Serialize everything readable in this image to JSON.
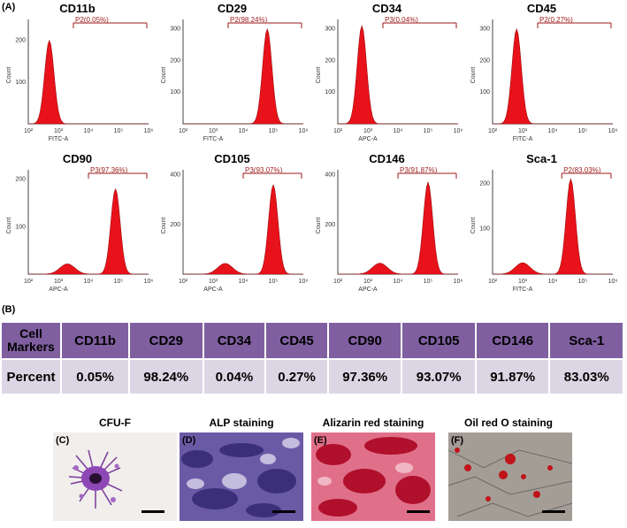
{
  "panel_a_label": "(A)",
  "panel_b_label": "(B)",
  "histograms": [
    {
      "title": "CD11b",
      "gate": "P2(0.05%)",
      "xaxis": "FITC-A",
      "yticks": [
        "100",
        "200"
      ],
      "peak_decade": 2.7,
      "peak_count": 200,
      "ymax": 250
    },
    {
      "title": "CD29",
      "gate": "P2(98.24%)",
      "xaxis": "FITC-A",
      "yticks": [
        "100",
        "200",
        "300"
      ],
      "peak_decade": 4.8,
      "peak_count": 300,
      "ymax": 330
    },
    {
      "title": "CD34",
      "gate": "P3(0.04%)",
      "xaxis": "APC-A",
      "yticks": [
        "100",
        "200",
        "300"
      ],
      "peak_decade": 2.8,
      "peak_count": 310,
      "ymax": 330
    },
    {
      "title": "CD45",
      "gate": "P2(0.27%)",
      "xaxis": "FITC-A",
      "yticks": [
        "100",
        "200",
        "300"
      ],
      "peak_decade": 2.8,
      "peak_count": 300,
      "ymax": 330
    },
    {
      "title": "CD90",
      "gate": "P3(97.36%)",
      "xaxis": "APC-A",
      "yticks": [
        "100",
        "200"
      ],
      "peak_decade": 4.9,
      "peak_count": 180,
      "ymax": 220
    },
    {
      "title": "CD105",
      "gate": "P3(93.07%)",
      "xaxis": "APC-A",
      "yticks": [
        "200",
        "400"
      ],
      "peak_decade": 5.0,
      "peak_count": 360,
      "ymax": 420
    },
    {
      "title": "CD146",
      "gate": "P3(91.87%)",
      "xaxis": "APC-A",
      "yticks": [
        "200",
        "400"
      ],
      "peak_decade": 5.0,
      "peak_count": 370,
      "ymax": 420
    },
    {
      "title": "Sca-1",
      "gate": "P2(83.03%)",
      "xaxis": "FITC-A",
      "yticks": [
        "100",
        "200"
      ],
      "peak_decade": 4.6,
      "peak_count": 210,
      "ymax": 230
    }
  ],
  "x_ticks": [
    "10²",
    "10³",
    "10⁴",
    "10⁵",
    "10⁶"
  ],
  "x_ticks_left": [
    "10²",
    "10³",
    "10⁴",
    "10⁵",
    "10⁶"
  ],
  "y_label": "Count",
  "table": {
    "header_first": "Cell Markers",
    "row_label": "Percent",
    "markers": [
      "CD11b",
      "CD29",
      "CD34",
      "CD45",
      "CD90",
      "CD105",
      "CD146",
      "Sca-1"
    ],
    "percents": [
      "0.05%",
      "98.24%",
      "0.04%",
      "0.27%",
      "97.36%",
      "93.07%",
      "91.87%",
      "83.03%"
    ]
  },
  "photos": [
    {
      "label": "(C)",
      "title": "CFU-F"
    },
    {
      "label": "(D)",
      "title": "ALP staining"
    },
    {
      "label": "(E)",
      "title": "Alizarin red staining"
    },
    {
      "label": "(F)",
      "title": "Oil red O staining"
    }
  ],
  "chart_data": {
    "type": "table",
    "columns": [
      "CD11b",
      "CD29",
      "CD34",
      "CD45",
      "CD90",
      "CD105",
      "CD146",
      "Sca-1"
    ],
    "values": [
      0.05,
      98.24,
      0.04,
      0.27,
      97.36,
      93.07,
      91.87,
      83.03
    ]
  }
}
